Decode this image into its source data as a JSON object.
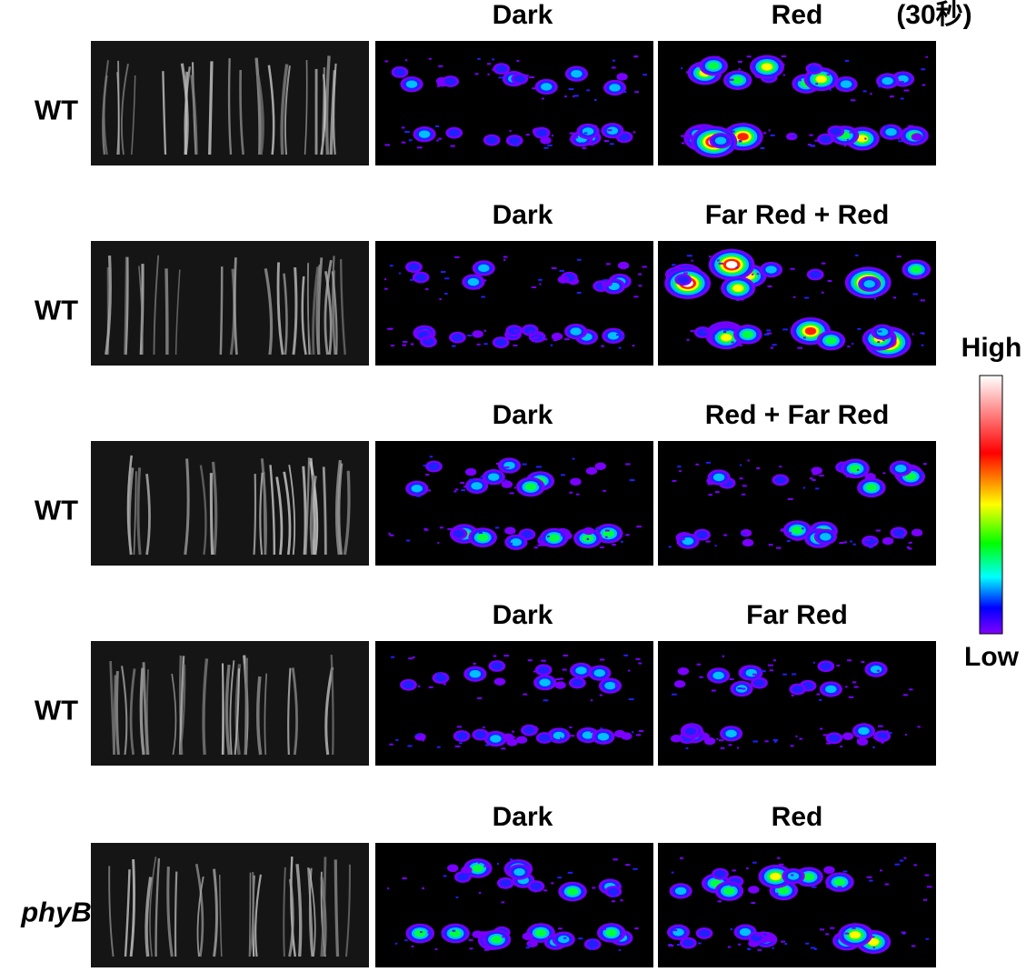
{
  "rows": [
    {
      "label": "WT",
      "headers": [
        "Dark",
        "Red"
      ],
      "note": "(30秒)"
    },
    {
      "label": "WT",
      "headers": [
        "Dark",
        "Far Red + Red"
      ]
    },
    {
      "label": "WT",
      "headers": [
        "Dark",
        "Red + Far Red"
      ]
    },
    {
      "label": "WT",
      "headers": [
        "Dark",
        "Far Red"
      ]
    },
    {
      "label": "phyB",
      "headers": [
        "Dark",
        "Red"
      ]
    }
  ],
  "colorbar": {
    "high": "High",
    "low": "Low"
  }
}
